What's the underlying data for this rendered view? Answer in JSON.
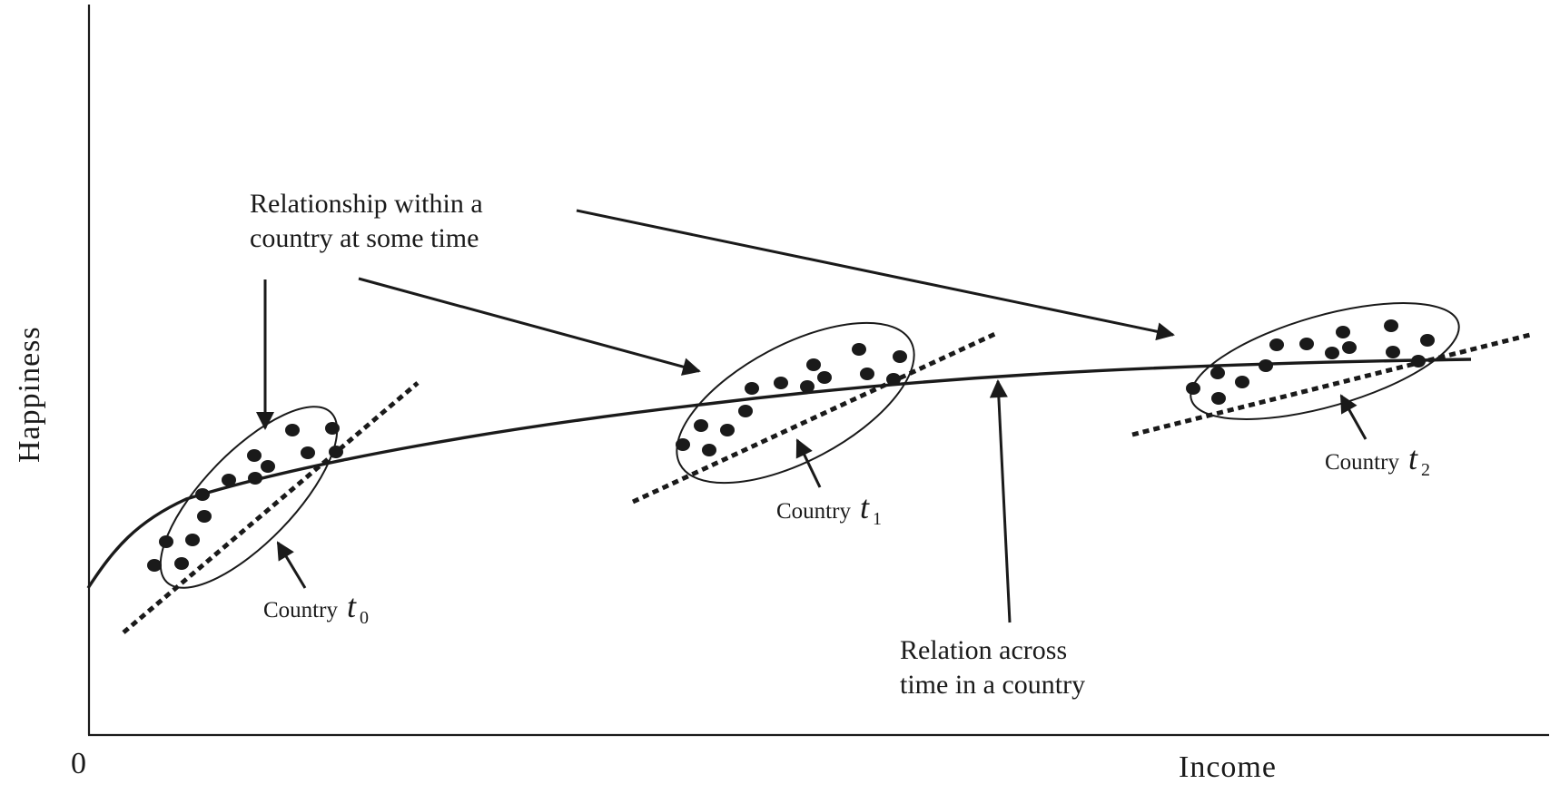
{
  "axes": {
    "x_label": "Income",
    "y_label": "Happiness",
    "origin_label": "0"
  },
  "annotations": {
    "within_country_line1": "Relationship within a",
    "within_country_line2": "country at some time",
    "across_time_line1": "Relation across",
    "across_time_line2": "time in a country"
  },
  "clusters": [
    {
      "name": "Country",
      "t": "t",
      "sub": "0"
    },
    {
      "name": "Country",
      "t": "t",
      "sub": "1"
    },
    {
      "name": "Country",
      "t": "t",
      "sub": "2"
    }
  ],
  "colors": {
    "ink": "#1a1a1a",
    "background": "#ffffff"
  }
}
